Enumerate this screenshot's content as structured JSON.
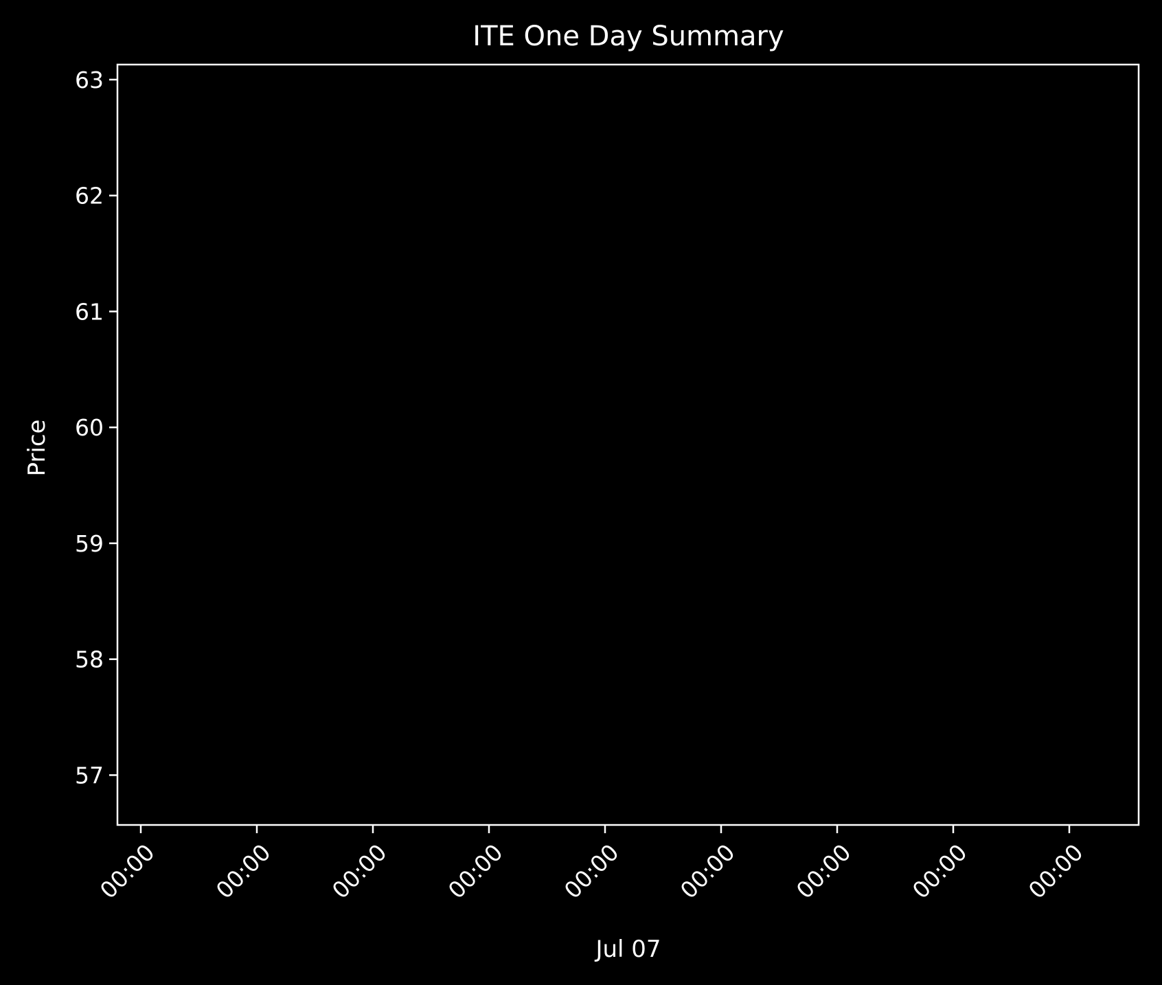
{
  "chart_data": {
    "type": "line",
    "title": "ITE One Day Summary",
    "xlabel": "Jul 07",
    "ylabel": "Price",
    "x_ticks": [
      "00:00",
      "00:00",
      "00:00",
      "00:00",
      "00:00",
      "00:00",
      "00:00",
      "00:00",
      "00:00"
    ],
    "y_ticks": [
      57,
      58,
      59,
      60,
      61,
      62,
      63
    ],
    "ylim": [
      56.57,
      63.13
    ],
    "series": [],
    "grid": false,
    "background_color": "#000000",
    "foreground_color": "#ffffff"
  }
}
